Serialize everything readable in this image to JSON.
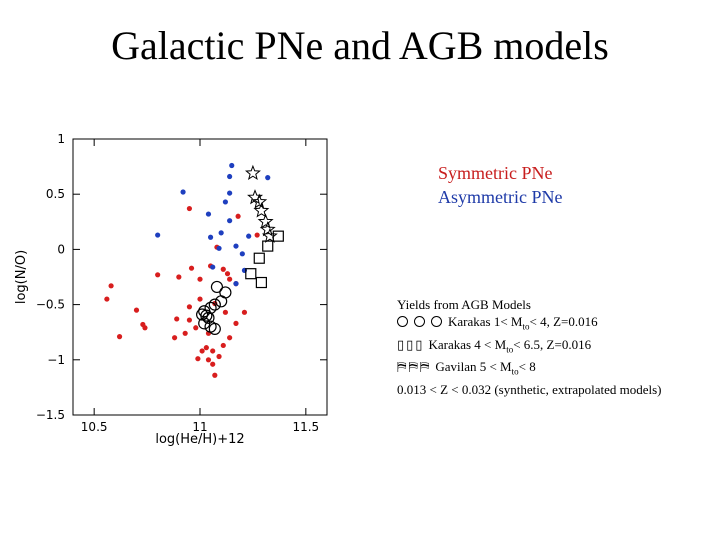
{
  "slide": {
    "title": "Galactic PNe and AGB models"
  },
  "legend": {
    "symmetric": "Symmetric PNe",
    "asymmetric": "Asymmetric PNe",
    "symmetric_color": "#d81e1e",
    "asymmetric_color": "#1e3fbf"
  },
  "yields": {
    "heading": "Yields from AGB Models",
    "karakas1_text": "Karakas 1< M",
    "karakas1_sub": "to",
    "karakas1_tail": "< 4, Z=0.016",
    "karakas2_markers": "▯▯▯",
    "karakas2_text": "Karakas 4 < M",
    "karakas2_sub": "to",
    "karakas2_tail": "< 6.5, Z=0.016",
    "gavilan_markers": "⛿⛿⛿",
    "gavilan_text": "Gavilan 5 < M",
    "gavilan_sub": "to",
    "gavilan_tail": "< 8",
    "metallicity_note": "0.013 < Z < 0.032 (synthetic, extrapolated models)"
  },
  "chart_data": {
    "type": "scatter",
    "xlabel": "log(He/H)+12",
    "ylabel": "log(N/O)",
    "xlim": [
      10.4,
      11.6
    ],
    "ylim": [
      -1.5,
      1.0
    ],
    "xticks": [
      10.5,
      11,
      11.5
    ],
    "xtick_labels": [
      "10.5",
      "11",
      "11.5"
    ],
    "yticks": [
      1,
      0.5,
      0,
      -0.5,
      -1,
      -1.5
    ],
    "ytick_labels": [
      "1",
      "0.5",
      "0",
      "−0.5",
      "−1",
      "−1.5"
    ],
    "grid": false,
    "series": [
      {
        "name": "Symmetric PNe",
        "color": "#d81e1e",
        "marker": "dot",
        "points": [
          [
            10.95,
            0.37
          ],
          [
            11.08,
            0.02
          ],
          [
            11.27,
            0.13
          ],
          [
            11.18,
            0.3
          ],
          [
            11.05,
            -0.15
          ],
          [
            10.96,
            -0.17
          ],
          [
            11.11,
            -0.18
          ],
          [
            11.13,
            -0.22
          ],
          [
            10.8,
            -0.23
          ],
          [
            10.9,
            -0.25
          ],
          [
            11.0,
            -0.27
          ],
          [
            11.14,
            -0.27
          ],
          [
            11.17,
            -0.31
          ],
          [
            10.58,
            -0.33
          ],
          [
            10.56,
            -0.45
          ],
          [
            11.0,
            -0.45
          ],
          [
            10.95,
            -0.52
          ],
          [
            11.07,
            -0.49
          ],
          [
            11.12,
            -0.57
          ],
          [
            11.21,
            -0.57
          ],
          [
            10.7,
            -0.55
          ],
          [
            10.89,
            -0.63
          ],
          [
            10.95,
            -0.64
          ],
          [
            11.17,
            -0.67
          ],
          [
            10.73,
            -0.68
          ],
          [
            10.74,
            -0.71
          ],
          [
            10.98,
            -0.71
          ],
          [
            10.93,
            -0.76
          ],
          [
            11.04,
            -0.76
          ],
          [
            10.62,
            -0.79
          ],
          [
            10.88,
            -0.8
          ],
          [
            11.14,
            -0.8
          ],
          [
            11.11,
            -0.87
          ],
          [
            11.03,
            -0.89
          ],
          [
            11.01,
            -0.92
          ],
          [
            11.06,
            -0.92
          ],
          [
            11.09,
            -0.97
          ],
          [
            10.99,
            -0.99
          ],
          [
            11.04,
            -1.0
          ],
          [
            11.06,
            -1.04
          ],
          [
            11.07,
            -1.14
          ]
        ]
      },
      {
        "name": "Asymmetric PNe",
        "color": "#1e3fbf",
        "marker": "dot",
        "points": [
          [
            11.15,
            0.76
          ],
          [
            11.14,
            0.66
          ],
          [
            11.32,
            0.65
          ],
          [
            10.92,
            0.52
          ],
          [
            11.14,
            0.51
          ],
          [
            11.12,
            0.43
          ],
          [
            11.04,
            0.32
          ],
          [
            11.14,
            0.26
          ],
          [
            11.1,
            0.15
          ],
          [
            10.8,
            0.13
          ],
          [
            11.23,
            0.12
          ],
          [
            11.05,
            0.11
          ],
          [
            11.17,
            0.03
          ],
          [
            11.09,
            0.01
          ],
          [
            11.2,
            -0.04
          ],
          [
            11.06,
            -0.16
          ],
          [
            11.21,
            -0.19
          ],
          [
            11.17,
            -0.31
          ]
        ]
      },
      {
        "name": "Karakas 1< Mto < 4, Z=0.016",
        "color": "#000000",
        "marker": "circle",
        "points": [
          [
            11.08,
            -0.34
          ],
          [
            11.12,
            -0.39
          ],
          [
            11.1,
            -0.47
          ],
          [
            11.07,
            -0.5
          ],
          [
            11.05,
            -0.53
          ],
          [
            11.02,
            -0.56
          ],
          [
            11.01,
            -0.59
          ],
          [
            11.03,
            -0.6
          ],
          [
            11.04,
            -0.62
          ],
          [
            11.02,
            -0.67
          ],
          [
            11.05,
            -0.7
          ],
          [
            11.07,
            -0.72
          ]
        ]
      },
      {
        "name": "Karakas 4 < Mto < 6.5, Z=0.016",
        "color": "#000000",
        "marker": "square",
        "points": [
          [
            11.37,
            0.12
          ],
          [
            11.32,
            0.03
          ],
          [
            11.28,
            -0.08
          ],
          [
            11.24,
            -0.22
          ],
          [
            11.29,
            -0.3
          ]
        ]
      },
      {
        "name": "Gavilan 5 < Mto < 8",
        "color": "#000000",
        "marker": "star",
        "points": [
          [
            11.25,
            0.69
          ],
          [
            11.26,
            0.47
          ],
          [
            11.28,
            0.43
          ],
          [
            11.29,
            0.35
          ],
          [
            11.31,
            0.25
          ],
          [
            11.32,
            0.18
          ],
          [
            11.33,
            0.12
          ]
        ]
      }
    ]
  }
}
